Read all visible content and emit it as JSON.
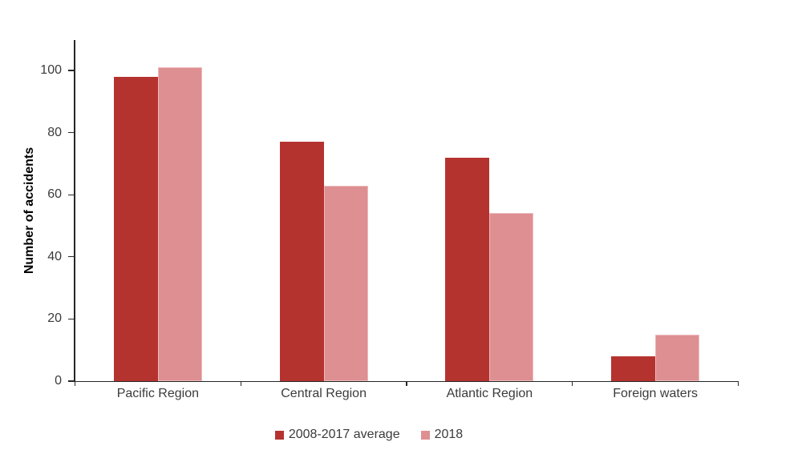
{
  "chart_data": {
    "type": "bar",
    "title": "",
    "categories": [
      "Pacific Region",
      "Central Region",
      "Atlantic Region",
      "Foreign waters"
    ],
    "series": [
      {
        "name": "2008-2017 average",
        "color": "#b5332f",
        "edge_color": "#b5332f",
        "values": [
          98,
          77,
          72,
          8
        ]
      },
      {
        "name": "2018",
        "color": "#de8f91",
        "edge_color": "#eebabc",
        "values": [
          101,
          63,
          54,
          15
        ]
      }
    ],
    "xlabel": "",
    "ylabel": "Number of accidents",
    "ylim": [
      0,
      110
    ],
    "yticks": [
      0,
      20,
      40,
      60,
      80,
      100
    ],
    "grid": false,
    "legend_position": "bottom",
    "axis_color": "#262626",
    "text_color": "#3b3b3b"
  }
}
